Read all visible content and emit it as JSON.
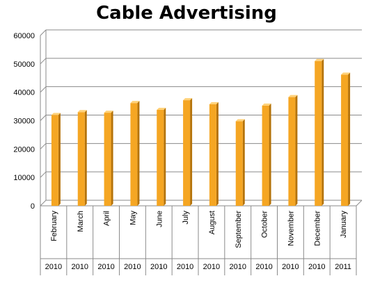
{
  "colors": {
    "bar_front": "#f5a623",
    "bar_side": "#b5730a",
    "bar_top": "#ffd27a",
    "grid": "#8a8a8a",
    "axis": "#8a8a8a"
  },
  "chart_data": {
    "type": "bar",
    "title": "Cable Advertising",
    "xlabel": "",
    "ylabel": "",
    "ylim": [
      0,
      60000
    ],
    "yticks": [
      0,
      10000,
      20000,
      30000,
      40000,
      50000,
      60000
    ],
    "grid": true,
    "legend": "none",
    "categories": [
      "February",
      "March",
      "April",
      "May",
      "June",
      "July",
      "August",
      "September",
      "October",
      "November",
      "December",
      "January"
    ],
    "years": [
      "2010",
      "2010",
      "2010",
      "2010",
      "2010",
      "2010",
      "2010",
      "2010",
      "2010",
      "2010",
      "2010",
      "2011"
    ],
    "values": [
      32000,
      33000,
      32800,
      36200,
      33800,
      37200,
      35800,
      29800,
      35300,
      38300,
      51000,
      46200
    ]
  }
}
